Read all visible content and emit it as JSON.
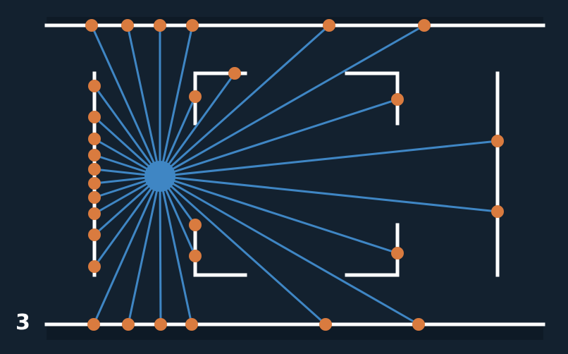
{
  "step_label": "3",
  "colors": {
    "background": "#13212f",
    "band": "#0e1a26",
    "wall": "#ffffff",
    "ray": "#3f86c4",
    "source": "#3f86c4",
    "hit_point": "#d97b3f"
  },
  "diagram": {
    "description_free": true,
    "source_count": 1,
    "ray_count": 34,
    "hit_point_count": 34
  }
}
